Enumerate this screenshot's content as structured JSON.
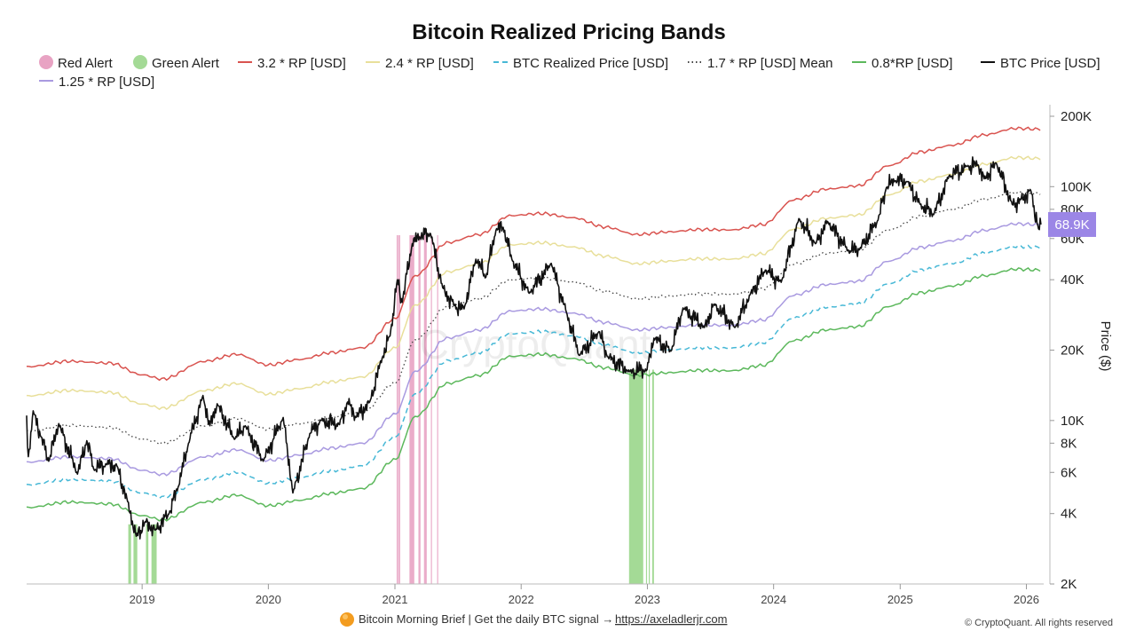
{
  "chart_data": {
    "type": "line",
    "title": "Bitcoin Realized Pricing Bands",
    "ylabel": "Price ($)",
    "y_scale": "log",
    "ylim": [
      2000,
      200000
    ],
    "xlim": [
      "2018-02-01",
      "2026-02-20"
    ],
    "x_ticks": [
      {
        "date": "2019-01-01",
        "label": "2019"
      },
      {
        "date": "2020-01-01",
        "label": "2020"
      },
      {
        "date": "2021-01-01",
        "label": "2021"
      },
      {
        "date": "2022-01-01",
        "label": "2022"
      },
      {
        "date": "2023-01-01",
        "label": "2023"
      },
      {
        "date": "2024-01-01",
        "label": "2024"
      },
      {
        "date": "2025-01-01",
        "label": "2025"
      },
      {
        "date": "2026-01-01",
        "label": "2026"
      }
    ],
    "y_ticks": [
      {
        "value": 200000,
        "label": "200K"
      },
      {
        "value": 100000,
        "label": "100K"
      },
      {
        "value": 80000,
        "label": "80K"
      },
      {
        "value": 60000,
        "label": "60K"
      },
      {
        "value": 40000,
        "label": "40K"
      },
      {
        "value": 20000,
        "label": "20K"
      },
      {
        "value": 10000,
        "label": "10K"
      },
      {
        "value": 8000,
        "label": "8K"
      },
      {
        "value": 6000,
        "label": "6K"
      },
      {
        "value": 4000,
        "label": "4K"
      },
      {
        "value": 2000,
        "label": "2K"
      }
    ],
    "grid": false,
    "legend_position": "top",
    "legend": [
      {
        "label": "Red Alert",
        "type": "dot",
        "color": "#e8a3c3"
      },
      {
        "label": "Green Alert",
        "type": "dot",
        "color": "#a4da96"
      },
      {
        "label": "3.2 * RP [USD]",
        "type": "line",
        "color": "#d9534f",
        "dash": ""
      },
      {
        "label": "2.4 * RP [USD]",
        "type": "line",
        "color": "#e8df9a",
        "dash": ""
      },
      {
        "label": "BTC Realized Price [USD]",
        "type": "line",
        "color": "#47b8d6",
        "dash": "6,4"
      },
      {
        "label": "1.7 * RP [USD] Mean",
        "type": "line",
        "color": "#444444",
        "dash": "1.5,3"
      },
      {
        "label": "0.8*RP [USD]",
        "type": "line",
        "color": "#5cb85c",
        "dash": ""
      },
      {
        "label": "BTC Price [USD]",
        "type": "line",
        "color": "#111111",
        "dash": ""
      },
      {
        "label": "1.25 * RP [USD]",
        "type": "line",
        "color": "#a99ae0",
        "dash": ""
      }
    ],
    "realized_price": {
      "name": "BTC Realized Price [USD]",
      "points": [
        [
          "2018-02-01",
          5300
        ],
        [
          "2018-06-01",
          5600
        ],
        [
          "2018-10-01",
          5500
        ],
        [
          "2019-01-01",
          4900
        ],
        [
          "2019-03-01",
          4700
        ],
        [
          "2019-07-01",
          5600
        ],
        [
          "2019-10-01",
          6000
        ],
        [
          "2020-01-01",
          5400
        ],
        [
          "2020-04-01",
          5700
        ],
        [
          "2020-07-01",
          6100
        ],
        [
          "2020-10-01",
          6400
        ],
        [
          "2021-01-01",
          8500
        ],
        [
          "2021-03-01",
          13000
        ],
        [
          "2021-06-01",
          18000
        ],
        [
          "2021-09-01",
          19500
        ],
        [
          "2021-12-01",
          23500
        ],
        [
          "2022-03-01",
          24000
        ],
        [
          "2022-06-01",
          23000
        ],
        [
          "2022-09-01",
          21000
        ],
        [
          "2022-12-01",
          19500
        ],
        [
          "2023-03-01",
          20000
        ],
        [
          "2023-06-01",
          20500
        ],
        [
          "2023-09-01",
          20400
        ],
        [
          "2023-12-01",
          21500
        ],
        [
          "2024-03-01",
          27500
        ],
        [
          "2024-06-01",
          30500
        ],
        [
          "2024-09-01",
          31500
        ],
        [
          "2024-12-01",
          38500
        ],
        [
          "2025-03-01",
          44000
        ],
        [
          "2025-06-01",
          47000
        ],
        [
          "2025-09-01",
          52000
        ],
        [
          "2025-12-01",
          55500
        ],
        [
          "2026-02-10",
          55000
        ]
      ]
    },
    "band_multipliers": [
      {
        "name": "3.2 * RP [USD]",
        "multiplier": 3.2
      },
      {
        "name": "2.4 * RP [USD]",
        "multiplier": 2.4
      },
      {
        "name": "1.7 * RP [USD] Mean",
        "multiplier": 1.7
      },
      {
        "name": "1.25 * RP [USD]",
        "multiplier": 1.25
      },
      {
        "name": "0.8*RP [USD]",
        "multiplier": 0.8
      }
    ],
    "btc_price": {
      "name": "BTC Price [USD]",
      "points": [
        [
          "2018-02-01",
          10500
        ],
        [
          "2018-02-06",
          7000
        ],
        [
          "2018-02-20",
          11000
        ],
        [
          "2018-03-15",
          8500
        ],
        [
          "2018-04-06",
          6700
        ],
        [
          "2018-05-05",
          9700
        ],
        [
          "2018-06-28",
          5900
        ],
        [
          "2018-07-25",
          8200
        ],
        [
          "2018-08-14",
          6200
        ],
        [
          "2018-09-20",
          6500
        ],
        [
          "2018-10-20",
          6400
        ],
        [
          "2018-11-20",
          4500
        ],
        [
          "2018-12-15",
          3200
        ],
        [
          "2019-01-10",
          3700
        ],
        [
          "2019-02-08",
          3400
        ],
        [
          "2019-03-20",
          4000
        ],
        [
          "2019-04-15",
          5200
        ],
        [
          "2019-05-15",
          8000
        ],
        [
          "2019-06-26",
          12800
        ],
        [
          "2019-07-16",
          9500
        ],
        [
          "2019-08-06",
          11800
        ],
        [
          "2019-09-25",
          8300
        ],
        [
          "2019-10-26",
          9500
        ],
        [
          "2019-12-17",
          6700
        ],
        [
          "2020-02-13",
          10300
        ],
        [
          "2020-03-12",
          4900
        ],
        [
          "2020-04-30",
          8800
        ],
        [
          "2020-06-01",
          10000
        ],
        [
          "2020-07-25",
          9600
        ],
        [
          "2020-08-17",
          12000
        ],
        [
          "2020-09-10",
          10300
        ],
        [
          "2020-10-20",
          12000
        ],
        [
          "2020-11-25",
          18500
        ],
        [
          "2020-12-18",
          23000
        ],
        [
          "2021-01-08",
          40000
        ],
        [
          "2021-01-22",
          32000
        ],
        [
          "2021-02-20",
          57000
        ],
        [
          "2021-03-13",
          61000
        ],
        [
          "2021-04-14",
          63000
        ],
        [
          "2021-05-19",
          37000
        ],
        [
          "2021-06-22",
          31000
        ],
        [
          "2021-07-20",
          30000
        ],
        [
          "2021-08-23",
          49000
        ],
        [
          "2021-09-21",
          41000
        ],
        [
          "2021-10-20",
          65000
        ],
        [
          "2021-11-10",
          67000
        ],
        [
          "2021-12-05",
          49000
        ],
        [
          "2022-01-24",
          35000
        ],
        [
          "2022-03-29",
          47000
        ],
        [
          "2022-05-12",
          29000
        ],
        [
          "2022-06-18",
          19000
        ],
        [
          "2022-08-14",
          24000
        ],
        [
          "2022-09-07",
          18800
        ],
        [
          "2022-11-10",
          16200
        ],
        [
          "2022-12-31",
          16500
        ],
        [
          "2023-01-20",
          22500
        ],
        [
          "2023-03-10",
          19800
        ],
        [
          "2023-04-14",
          30300
        ],
        [
          "2023-06-15",
          25000
        ],
        [
          "2023-07-13",
          31500
        ],
        [
          "2023-09-11",
          25000
        ],
        [
          "2023-10-25",
          34500
        ],
        [
          "2023-12-08",
          44000
        ],
        [
          "2024-01-23",
          39000
        ],
        [
          "2024-03-14",
          73000
        ],
        [
          "2024-05-01",
          57000
        ],
        [
          "2024-06-05",
          71000
        ],
        [
          "2024-08-05",
          53000
        ],
        [
          "2024-09-06",
          54000
        ],
        [
          "2024-10-29",
          72000
        ],
        [
          "2024-11-22",
          99000
        ],
        [
          "2024-12-17",
          106000
        ],
        [
          "2025-01-21",
          105000
        ],
        [
          "2025-02-28",
          84000
        ],
        [
          "2025-04-08",
          76000
        ],
        [
          "2025-05-22",
          111000
        ],
        [
          "2025-07-14",
          122000
        ],
        [
          "2025-08-14",
          124000
        ],
        [
          "2025-09-01",
          108000
        ],
        [
          "2025-10-06",
          126000
        ],
        [
          "2025-11-21",
          84000
        ],
        [
          "2025-12-15",
          88000
        ],
        [
          "2026-01-14",
          96000
        ],
        [
          "2026-02-05",
          66000
        ],
        [
          "2026-02-12",
          68900
        ]
      ]
    },
    "red_alert_periods": [
      [
        "2021-01-06",
        "2021-01-07"
      ],
      [
        "2021-01-10",
        "2021-01-11"
      ],
      [
        "2021-01-13",
        "2021-01-14"
      ],
      [
        "2021-02-12",
        "2021-02-26"
      ],
      [
        "2021-03-10",
        "2021-03-16"
      ],
      [
        "2021-03-26",
        "2021-04-03"
      ],
      [
        "2021-04-15",
        "2021-04-17"
      ],
      [
        "2021-05-03",
        "2021-05-04"
      ]
    ],
    "green_alert_periods": [
      [
        "2018-11-22",
        "2018-11-30"
      ],
      [
        "2018-12-07",
        "2018-12-18"
      ],
      [
        "2019-01-12",
        "2019-01-19"
      ],
      [
        "2019-01-28",
        "2019-02-12"
      ],
      [
        "2022-11-09",
        "2022-12-20"
      ],
      [
        "2022-12-28",
        "2022-12-31"
      ],
      [
        "2023-01-05",
        "2023-01-07"
      ],
      [
        "2023-01-15",
        "2023-01-20"
      ]
    ],
    "current_price_label": "68.9K",
    "current_price_color": "#9b86e6",
    "watermark": "CryptoQuant"
  },
  "footer": {
    "brief_text": "Bitcoin Morning Brief | Get the daily BTC signal →",
    "link_text": "https://axeladlerjr.com",
    "copyright": "© CryptoQuant. All rights reserved",
    "icon_name": "orange-coin-icon"
  }
}
